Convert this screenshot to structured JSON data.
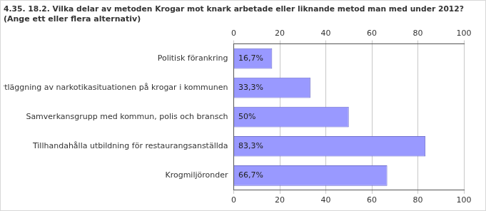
{
  "chart_data": {
    "type": "bar",
    "orientation": "horizontal",
    "title": "4.35. 18.2. Vilka delar av metoden Krogar mot knark arbetade eller liknande metod man med under 2012?",
    "subtitle": "(Ange ett eller flera alternativ)",
    "categories": [
      "Politisk förankring",
      "Kartläggning av narkotikasituationen på krogar i kommunen",
      "Samverkansgrupp med kommun, polis och bransch",
      "Tillhandahålla utbildning för restaurangsanställda",
      "Krogmiljöronder"
    ],
    "values": [
      16.7,
      33.3,
      50,
      83.3,
      66.7
    ],
    "value_labels": [
      "16,7%",
      "33,3%",
      "50%",
      "83,3%",
      "66,7%"
    ],
    "data_labels": true,
    "color": "#9999ff",
    "xlim": [
      0,
      100
    ],
    "xticks": [
      0,
      20,
      40,
      60,
      80,
      100
    ],
    "grid": true
  }
}
